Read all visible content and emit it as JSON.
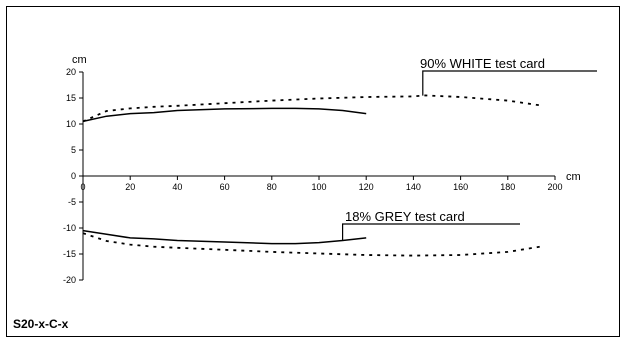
{
  "chart_data": {
    "type": "line",
    "model_label": "S20-x-C-x",
    "x_unit": "cm",
    "y_unit": "cm",
    "xlim": [
      0,
      200
    ],
    "ylim": [
      -20,
      20
    ],
    "x_ticks": [
      0,
      20,
      40,
      60,
      80,
      100,
      120,
      140,
      160,
      180,
      200
    ],
    "y_ticks": [
      20,
      15,
      10,
      5,
      0,
      -5,
      -10,
      -15,
      -20
    ],
    "x_tick_labels": [
      "0",
      "20",
      "40",
      "60",
      "80",
      "100",
      "120",
      "140",
      "160",
      "180",
      "200"
    ],
    "y_tick_labels": [
      "20",
      "15",
      "10",
      "5",
      "0",
      "-5",
      "-10",
      "-15",
      "-20"
    ],
    "grid": false,
    "annotations": [
      {
        "text": "90% WHITE test card",
        "target_series": "white_dashed",
        "target_x": 144
      },
      {
        "text": "18% GREY test card",
        "target_series": "grey_solid",
        "target_x": 110
      }
    ],
    "series": [
      {
        "id": "white_dashed",
        "style": "dashed",
        "x": [
          0,
          10,
          20,
          30,
          40,
          60,
          80,
          100,
          120,
          140,
          145,
          160,
          180,
          195
        ],
        "y": [
          10.5,
          12.5,
          13.0,
          13.3,
          13.5,
          14.0,
          14.5,
          14.9,
          15.2,
          15.3,
          15.5,
          15.2,
          14.5,
          13.5
        ]
      },
      {
        "id": "white_solid",
        "style": "solid",
        "x": [
          0,
          10,
          20,
          30,
          40,
          60,
          80,
          90,
          100,
          110,
          120
        ],
        "y": [
          10.5,
          11.5,
          12.0,
          12.2,
          12.6,
          12.9,
          13.0,
          13.0,
          12.9,
          12.6,
          12.0
        ]
      },
      {
        "id": "grey_dashed",
        "style": "dashed",
        "x": [
          0,
          10,
          20,
          30,
          40,
          60,
          80,
          100,
          120,
          140,
          160,
          180,
          195
        ],
        "y": [
          -11.0,
          -12.5,
          -13.2,
          -13.6,
          -13.8,
          -14.2,
          -14.6,
          -14.9,
          -15.2,
          -15.3,
          -15.2,
          -14.6,
          -13.5
        ]
      },
      {
        "id": "grey_solid",
        "style": "solid",
        "x": [
          0,
          10,
          20,
          30,
          40,
          60,
          80,
          90,
          100,
          110,
          120
        ],
        "y": [
          -10.5,
          -11.2,
          -11.9,
          -12.1,
          -12.4,
          -12.7,
          -13.0,
          -13.0,
          -12.8,
          -12.4,
          -11.9
        ]
      }
    ]
  }
}
